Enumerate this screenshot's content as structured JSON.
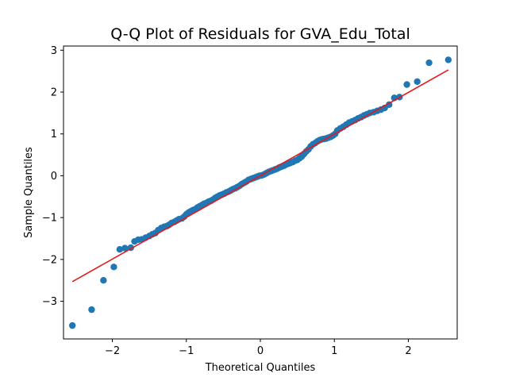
{
  "chart_data": {
    "type": "scatter",
    "title": "Q-Q Plot of Residuals for GVA_Edu_Total",
    "xlabel": "Theoretical Quantiles",
    "ylabel": "Sample Quantiles",
    "xlim": [
      -2.66,
      2.66
    ],
    "ylim": [
      -3.9,
      3.1
    ],
    "xticks": [
      -2,
      -1,
      0,
      1,
      2
    ],
    "yticks": [
      -3,
      -2,
      -1,
      0,
      1,
      2,
      3
    ],
    "xtick_labels": [
      "−2",
      "−1",
      "0",
      "1",
      "2"
    ],
    "ytick_labels": [
      "−3",
      "−2",
      "−1",
      "0",
      "1",
      "2",
      "3"
    ],
    "grid": false,
    "point_color": "#1f77b4",
    "line_color": "#e41a1c",
    "reference_line": {
      "x": [
        -2.54,
        2.54
      ],
      "y": [
        -2.53,
        2.53
      ]
    },
    "points": [
      [
        -2.54,
        -3.58
      ],
      [
        -2.28,
        -3.2
      ],
      [
        -2.12,
        -2.5
      ],
      [
        -1.98,
        -2.18
      ],
      [
        -1.9,
        -1.76
      ],
      [
        -1.83,
        -1.73
      ],
      [
        -1.75,
        -1.72
      ],
      [
        -1.7,
        -1.57
      ],
      [
        -1.65,
        -1.53
      ],
      [
        -1.6,
        -1.52
      ],
      [
        -1.55,
        -1.48
      ],
      [
        -1.5,
        -1.44
      ],
      [
        -1.46,
        -1.4
      ],
      [
        -1.42,
        -1.37
      ],
      [
        -1.38,
        -1.3
      ],
      [
        -1.34,
        -1.25
      ],
      [
        -1.3,
        -1.22
      ],
      [
        -1.26,
        -1.2
      ],
      [
        -1.23,
        -1.17
      ],
      [
        -1.2,
        -1.13
      ],
      [
        -1.16,
        -1.1
      ],
      [
        -1.13,
        -1.07
      ],
      [
        -1.1,
        -1.04
      ],
      [
        -1.06,
        -1.02
      ],
      [
        -1.03,
        -0.98
      ],
      [
        -1.0,
        -0.92
      ],
      [
        -0.97,
        -0.88
      ],
      [
        -0.94,
        -0.85
      ],
      [
        -0.91,
        -0.82
      ],
      [
        -0.88,
        -0.8
      ],
      [
        -0.85,
        -0.76
      ],
      [
        -0.82,
        -0.73
      ],
      [
        -0.79,
        -0.7
      ],
      [
        -0.76,
        -0.67
      ],
      [
        -0.73,
        -0.65
      ],
      [
        -0.7,
        -0.62
      ],
      [
        -0.67,
        -0.6
      ],
      [
        -0.64,
        -0.57
      ],
      [
        -0.61,
        -0.53
      ],
      [
        -0.58,
        -0.5
      ],
      [
        -0.55,
        -0.47
      ],
      [
        -0.52,
        -0.45
      ],
      [
        -0.49,
        -0.43
      ],
      [
        -0.46,
        -0.4
      ],
      [
        -0.43,
        -0.38
      ],
      [
        -0.4,
        -0.35
      ],
      [
        -0.37,
        -0.32
      ],
      [
        -0.34,
        -0.3
      ],
      [
        -0.31,
        -0.27
      ],
      [
        -0.28,
        -0.24
      ],
      [
        -0.25,
        -0.2
      ],
      [
        -0.22,
        -0.17
      ],
      [
        -0.19,
        -0.14
      ],
      [
        -0.16,
        -0.1
      ],
      [
        -0.13,
        -0.08
      ],
      [
        -0.1,
        -0.06
      ],
      [
        -0.07,
        -0.04
      ],
      [
        -0.04,
        -0.02
      ],
      [
        -0.01,
        0.0
      ],
      [
        0.02,
        0.01
      ],
      [
        0.05,
        0.03
      ],
      [
        0.08,
        0.06
      ],
      [
        0.11,
        0.09
      ],
      [
        0.14,
        0.11
      ],
      [
        0.17,
        0.13
      ],
      [
        0.2,
        0.15
      ],
      [
        0.23,
        0.17
      ],
      [
        0.26,
        0.2
      ],
      [
        0.29,
        0.22
      ],
      [
        0.32,
        0.24
      ],
      [
        0.35,
        0.27
      ],
      [
        0.38,
        0.29
      ],
      [
        0.41,
        0.31
      ],
      [
        0.44,
        0.33
      ],
      [
        0.47,
        0.36
      ],
      [
        0.5,
        0.38
      ],
      [
        0.53,
        0.42
      ],
      [
        0.56,
        0.46
      ],
      [
        0.59,
        0.52
      ],
      [
        0.62,
        0.58
      ],
      [
        0.65,
        0.63
      ],
      [
        0.68,
        0.7
      ],
      [
        0.71,
        0.75
      ],
      [
        0.74,
        0.78
      ],
      [
        0.77,
        0.82
      ],
      [
        0.8,
        0.85
      ],
      [
        0.83,
        0.87
      ],
      [
        0.86,
        0.88
      ],
      [
        0.89,
        0.89
      ],
      [
        0.92,
        0.91
      ],
      [
        0.95,
        0.93
      ],
      [
        0.98,
        0.96
      ],
      [
        1.01,
        1.0
      ],
      [
        1.04,
        1.08
      ],
      [
        1.08,
        1.13
      ],
      [
        1.12,
        1.17
      ],
      [
        1.16,
        1.22
      ],
      [
        1.2,
        1.27
      ],
      [
        1.24,
        1.3
      ],
      [
        1.28,
        1.33
      ],
      [
        1.32,
        1.37
      ],
      [
        1.36,
        1.4
      ],
      [
        1.4,
        1.44
      ],
      [
        1.44,
        1.47
      ],
      [
        1.48,
        1.5
      ],
      [
        1.53,
        1.52
      ],
      [
        1.58,
        1.55
      ],
      [
        1.63,
        1.58
      ],
      [
        1.68,
        1.62
      ],
      [
        1.74,
        1.7
      ],
      [
        1.81,
        1.86
      ],
      [
        1.88,
        1.88
      ],
      [
        1.98,
        2.18
      ],
      [
        2.12,
        2.25
      ],
      [
        2.28,
        2.7
      ],
      [
        2.54,
        2.77
      ]
    ]
  }
}
